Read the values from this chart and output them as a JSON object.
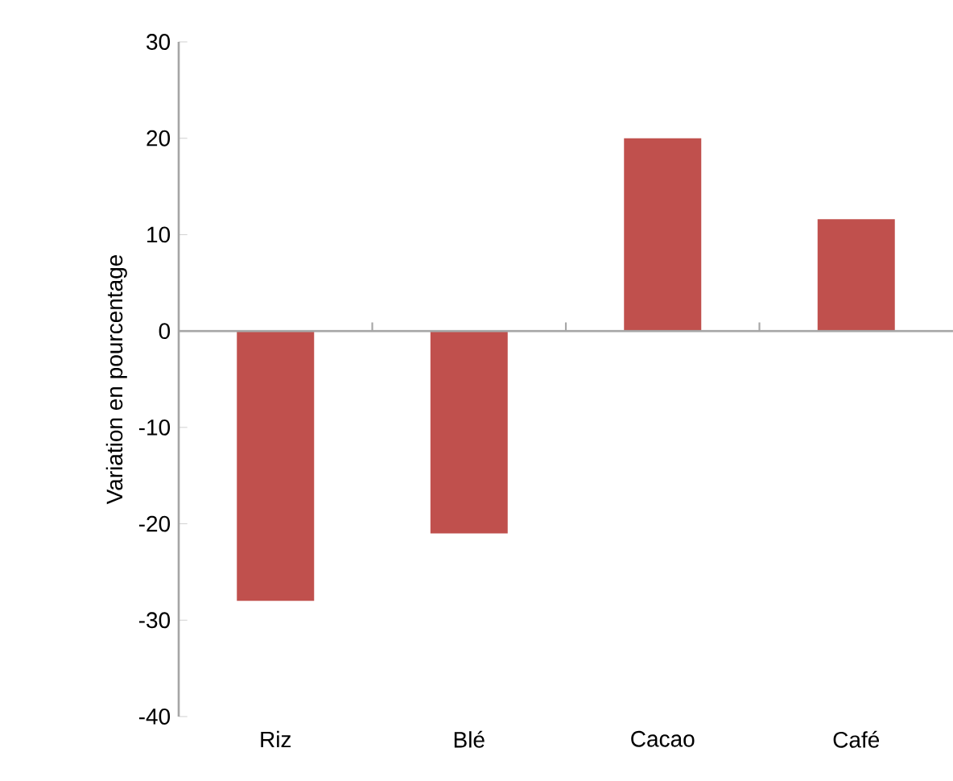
{
  "chart_data": {
    "type": "bar",
    "ylabel": "Variation en pourcentage",
    "categories": [
      "Riz",
      "Blé",
      "Cacao",
      "Café"
    ],
    "values": [
      -28,
      -21,
      20,
      11.6
    ],
    "color": "#c0504d",
    "ylim": [
      -40,
      30
    ],
    "yticks": [
      -40,
      -30,
      -20,
      -10,
      0,
      10,
      20,
      30
    ]
  }
}
